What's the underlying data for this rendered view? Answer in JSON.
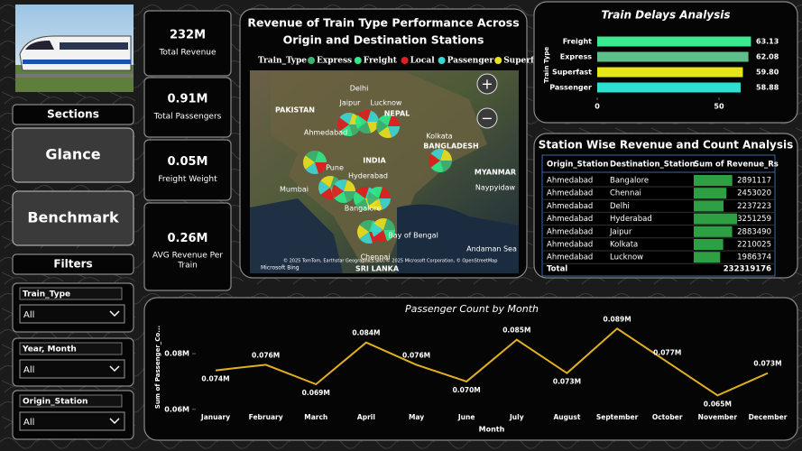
{
  "kpis": [
    {
      "value": "232M",
      "label": "Total Revenue"
    },
    {
      "value": "0.91M",
      "label": "Total Passengers"
    },
    {
      "value": "0.05M",
      "label": "Freight Weight"
    },
    {
      "value": "0.26M",
      "label": "AVG Revenue Per Train"
    }
  ],
  "sections": {
    "title": "Sections",
    "buttons": [
      "Glance",
      "Benchmark"
    ]
  },
  "filters": {
    "title": "Filters",
    "items": [
      {
        "label": "Train_Type",
        "value": "All"
      },
      {
        "label": "Year, Month",
        "value": "All"
      },
      {
        "label": "Origin_Station",
        "value": "All"
      }
    ]
  },
  "map": {
    "title": [
      "Revenue of Train Type Performance Across",
      "Origin and Destination Stations"
    ],
    "legend_title": "Train_Type",
    "legend": [
      {
        "name": "Express",
        "color": "#3cb371"
      },
      {
        "name": "Freight",
        "color": "#2ee88a"
      },
      {
        "name": "Local",
        "color": "#e02020"
      },
      {
        "name": "Passenger",
        "color": "#3dd6d0"
      },
      {
        "name": "Superfast",
        "color": "#e8e020"
      }
    ],
    "places": [
      "Delhi",
      "Jaipur",
      "Lucknow",
      "PAKISTAN",
      "NEPAL",
      "Ahmedabad",
      "Kolkata",
      "BANGLADESH",
      "INDIA",
      "Pune",
      "Hyderabad",
      "MYANMAR",
      "Mumbai",
      "Naypyidaw",
      "Bangalore",
      "Bay of Bengal",
      "Chennai",
      "SRI LANKA",
      "Andaman Sea"
    ],
    "zoom": [
      "+",
      "−"
    ],
    "attribution": "© 2025 TomTom, Earthstar Geographics SIO, © 2025 Microsoft Corporation, © OpenStreetMap",
    "brand": "Microsoft Bing"
  },
  "chart_data": [
    {
      "type": "hbar",
      "title": "Train Delays Analysis",
      "y_label": "Train Type",
      "categories": [
        "Freight",
        "Express",
        "Superfast",
        "Passenger"
      ],
      "values": [
        63.13,
        62.08,
        59.8,
        58.88
      ],
      "value_labels": [
        "63.13",
        "62.08",
        "59.80",
        "58.88"
      ],
      "colors": [
        "#3de88f",
        "#5fbf8a",
        "#e6e619",
        "#2ee0d0"
      ],
      "xlim": [
        0,
        70
      ],
      "xticks": [
        0,
        50
      ]
    },
    {
      "type": "line",
      "title": "Passenger Count by Month",
      "x_label": "Month",
      "y_label": "Sum of Passenger_Co...",
      "categories": [
        "January",
        "February",
        "March",
        "April",
        "May",
        "June",
        "July",
        "August",
        "September",
        "October",
        "November",
        "December"
      ],
      "values": [
        74000,
        76000,
        69000,
        84000,
        76000,
        70000,
        85000,
        73000,
        89000,
        77000,
        65000,
        73000
      ],
      "value_labels": [
        "0.074M",
        "0.076M",
        "0.069M",
        "0.084M",
        "0.076M",
        "0.070M",
        "0.085M",
        "0.073M",
        "0.089M",
        "0.077M",
        "0.065M",
        "0.073M"
      ],
      "color": "#e0b020",
      "ylim": [
        58000,
        92000
      ],
      "yticks": [
        {
          "value": 60000,
          "label": "0.06M"
        },
        {
          "value": 80000,
          "label": "0.08M"
        }
      ]
    }
  ],
  "table": {
    "title": "Station Wise Revenue and Count Analysis",
    "columns": [
      "Origin_Station",
      "Destination_Station",
      "Sum of Revenue_Rs"
    ],
    "rows": [
      [
        "Ahmedabad",
        "Bangalore",
        2891117
      ],
      [
        "Ahmedabad",
        "Chennai",
        2453020
      ],
      [
        "Ahmedabad",
        "Delhi",
        2237223
      ],
      [
        "Ahmedabad",
        "Hyderabad",
        3251259
      ],
      [
        "Ahmedabad",
        "Jaipur",
        2883490
      ],
      [
        "Ahmedabad",
        "Kolkata",
        2210025
      ],
      [
        "Ahmedabad",
        "Lucknow",
        1986374
      ]
    ],
    "total": [
      "Total",
      232319176
    ]
  }
}
